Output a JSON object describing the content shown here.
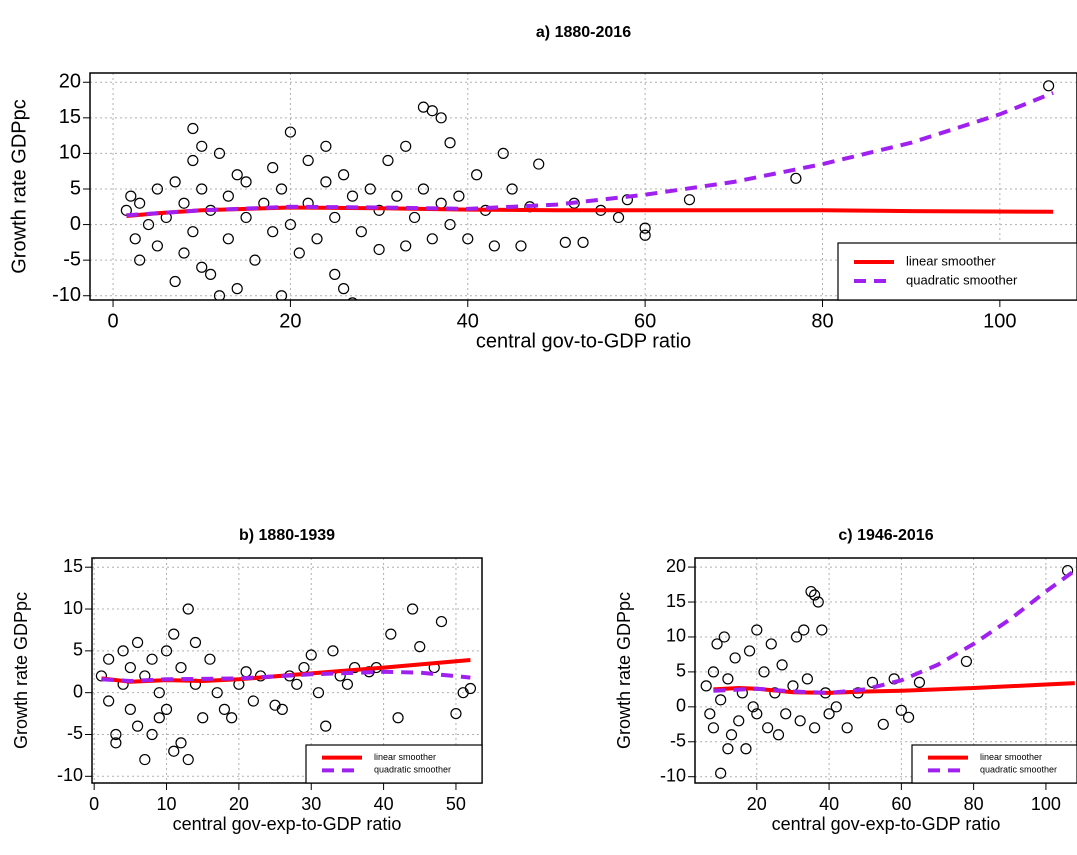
{
  "chart_data": [
    {
      "type": "scatter",
      "title": "a) 1880-2016",
      "xlabel": "central gov-to-GDP ratio",
      "ylabel": "Growth rate GDPpc",
      "xlim": [
        -2.6,
        108.7
      ],
      "ylim": [
        -10.6,
        21.3
      ],
      "xticks": [
        0,
        20,
        40,
        60,
        80,
        100
      ],
      "yticks": [
        -10,
        -5,
        0,
        5,
        10,
        15,
        20
      ],
      "grid": true,
      "legend": "bottom-right",
      "marker_color": "#000000",
      "x": [
        1.5,
        2,
        2.5,
        3,
        3,
        4,
        5,
        5,
        6,
        7,
        7,
        8,
        8,
        9,
        9,
        9,
        10,
        10,
        10,
        11,
        11,
        12,
        12,
        13,
        13,
        14,
        14,
        15,
        15,
        16,
        17,
        18,
        18,
        19,
        19,
        20,
        20,
        21,
        22,
        22,
        23,
        24,
        24,
        25,
        25,
        26,
        26,
        27,
        27,
        28,
        29,
        30,
        30,
        31,
        32,
        33,
        33,
        34,
        35,
        35,
        36,
        36,
        37,
        37,
        38,
        38,
        39,
        40,
        41,
        42,
        43,
        44,
        45,
        46,
        47,
        48,
        51,
        52,
        53,
        55,
        57,
        58,
        60,
        60,
        65,
        77,
        105.5
      ],
      "values": [
        2,
        4,
        -2,
        -5,
        3,
        0,
        5,
        -3,
        1,
        -8,
        6,
        -4,
        3,
        13.5,
        9,
        -1,
        11,
        5,
        -6,
        2,
        -7,
        10,
        -10,
        4,
        -2,
        7,
        -9,
        1,
        6,
        -5,
        3,
        8,
        -1,
        -10,
        5,
        13,
        0,
        -4,
        9,
        3,
        -2,
        11,
        6,
        -7,
        1,
        -9,
        7,
        -11,
        4,
        -1,
        5,
        -3.5,
        2,
        9,
        4,
        -3,
        11,
        1,
        16.5,
        5,
        16,
        -2,
        15,
        3,
        11.5,
        0,
        4,
        -2,
        7,
        2,
        -3,
        10,
        5,
        -3,
        2.5,
        8.5,
        -2.5,
        3,
        -2.5,
        2,
        1,
        3.5,
        -0.5,
        -1.5,
        3.5,
        6.5,
        19.5
      ],
      "lines": [
        {
          "name": "linear smoother",
          "color": "#ff0000",
          "style": "solid",
          "x": [
            1.5,
            5,
            10,
            20,
            30,
            40,
            50,
            60,
            80,
            90,
            106
          ],
          "values": [
            1.2,
            1.6,
            2.0,
            2.4,
            2.3,
            2.1,
            2.0,
            2.0,
            2.0,
            1.9,
            1.8
          ]
        },
        {
          "name": "quadratic smoother",
          "color": "#a020f0",
          "style": "dashed",
          "x": [
            1.5,
            10,
            20,
            30,
            40,
            50,
            60,
            70,
            80,
            90,
            100,
            106
          ],
          "values": [
            1.3,
            2.0,
            2.5,
            2.4,
            2.2,
            2.8,
            4.2,
            6.0,
            8.5,
            11.5,
            15.5,
            18.5
          ]
        }
      ]
    },
    {
      "type": "scatter",
      "title": "b) 1880-1939",
      "xlabel": "central gov-exp-to-GDP ratio",
      "ylabel": "Growth rate GDPpc",
      "xlim": [
        -0.3,
        53.6
      ],
      "ylim": [
        -10.8,
        16.1
      ],
      "xticks": [
        0,
        10,
        20,
        30,
        40,
        50
      ],
      "yticks": [
        -10,
        -5,
        0,
        5,
        10,
        15
      ],
      "grid": true,
      "legend": "bottom-right",
      "marker_color": "#000000",
      "x": [
        1,
        2,
        2,
        3,
        3,
        4,
        4,
        5,
        5,
        6,
        6,
        7,
        7,
        8,
        8,
        9,
        9,
        10,
        10,
        11,
        11,
        12,
        12,
        13,
        13,
        14,
        14,
        15,
        16,
        17,
        18,
        19,
        20,
        21,
        22,
        23,
        25,
        26,
        27,
        28,
        29,
        30,
        31,
        32,
        33,
        34,
        35,
        36,
        38,
        39,
        41,
        42,
        44,
        45,
        47,
        48,
        50,
        51,
        52
      ],
      "values": [
        2,
        4,
        -1,
        -5,
        -6,
        1,
        5,
        -2,
        3,
        -4,
        6,
        -8,
        2,
        -5,
        4,
        -3,
        0,
        5,
        -2,
        -7,
        7,
        3,
        -6,
        10,
        -8,
        1,
        6,
        -3,
        4,
        0,
        -2,
        -3,
        1,
        2.5,
        -1,
        2,
        -1.5,
        -2,
        2,
        1,
        3,
        4.5,
        0,
        -4,
        5,
        2,
        1,
        3,
        2.5,
        3,
        7,
        -3,
        10,
        5.5,
        3,
        8.5,
        -2.5,
        0,
        0.5
      ],
      "lines": [
        {
          "name": "linear smoother",
          "color": "#ff0000",
          "style": "solid",
          "x": [
            1,
            5,
            10,
            15,
            20,
            30,
            40,
            52
          ],
          "values": [
            1.7,
            1.3,
            1.5,
            1.4,
            1.6,
            2.3,
            3.0,
            3.9
          ]
        },
        {
          "name": "quadratic smoother",
          "color": "#a020f0",
          "style": "dashed",
          "x": [
            1,
            5,
            10,
            20,
            30,
            40,
            45,
            52
          ],
          "values": [
            1.6,
            1.4,
            1.6,
            1.7,
            2.2,
            2.5,
            2.4,
            1.8
          ]
        }
      ]
    },
    {
      "type": "scatter",
      "title": "c) 1946-2016",
      "xlabel": "central gov-exp-to-GDP ratio",
      "ylabel": "Growth rate GDPpc",
      "xlim": [
        2.9,
        108.6
      ],
      "ylim": [
        -10.9,
        21.3
      ],
      "xticks": [
        20,
        40,
        60,
        80,
        100
      ],
      "yticks": [
        -10,
        -5,
        0,
        5,
        10,
        15,
        20
      ],
      "grid": true,
      "legend": "bottom-right",
      "marker_color": "#000000",
      "x": [
        6,
        7,
        8,
        8,
        9,
        10,
        10,
        11,
        12,
        12,
        13,
        14,
        15,
        16,
        17,
        18,
        19,
        20,
        20,
        22,
        23,
        24,
        25,
        26,
        27,
        28,
        30,
        31,
        32,
        33,
        34,
        35,
        36,
        36,
        37,
        38,
        39,
        40,
        42,
        45,
        48,
        52,
        55,
        58,
        60,
        62,
        65,
        78,
        106
      ],
      "values": [
        3,
        -1,
        5,
        -3,
        9,
        -9.5,
        1,
        10,
        -6,
        4,
        -4,
        7,
        -2,
        2,
        -6,
        8,
        0,
        11,
        -1,
        5,
        -3,
        9,
        2,
        -4,
        6,
        -1,
        3,
        10,
        -2,
        11,
        4,
        16.5,
        16,
        -3,
        15,
        11,
        2,
        -1,
        0,
        -3,
        2,
        3.5,
        -2.5,
        4,
        -0.5,
        -1.5,
        3.5,
        6.5,
        19.5
      ],
      "lines": [
        {
          "name": "linear smoother",
          "color": "#ff0000",
          "style": "solid",
          "x": [
            8,
            15,
            20,
            30,
            40,
            50,
            60,
            80,
            100,
            108
          ],
          "values": [
            2.5,
            2.7,
            2.6,
            2.1,
            2.0,
            2.2,
            2.3,
            2.7,
            3.2,
            3.4
          ]
        },
        {
          "name": "quadratic smoother",
          "color": "#a020f0",
          "style": "dashed",
          "x": [
            8,
            20,
            30,
            40,
            50,
            60,
            70,
            80,
            90,
            100,
            108
          ],
          "values": [
            2.3,
            2.6,
            2.2,
            2.0,
            2.5,
            3.8,
            6.0,
            9.0,
            12.5,
            16.5,
            19.5
          ]
        }
      ]
    }
  ]
}
